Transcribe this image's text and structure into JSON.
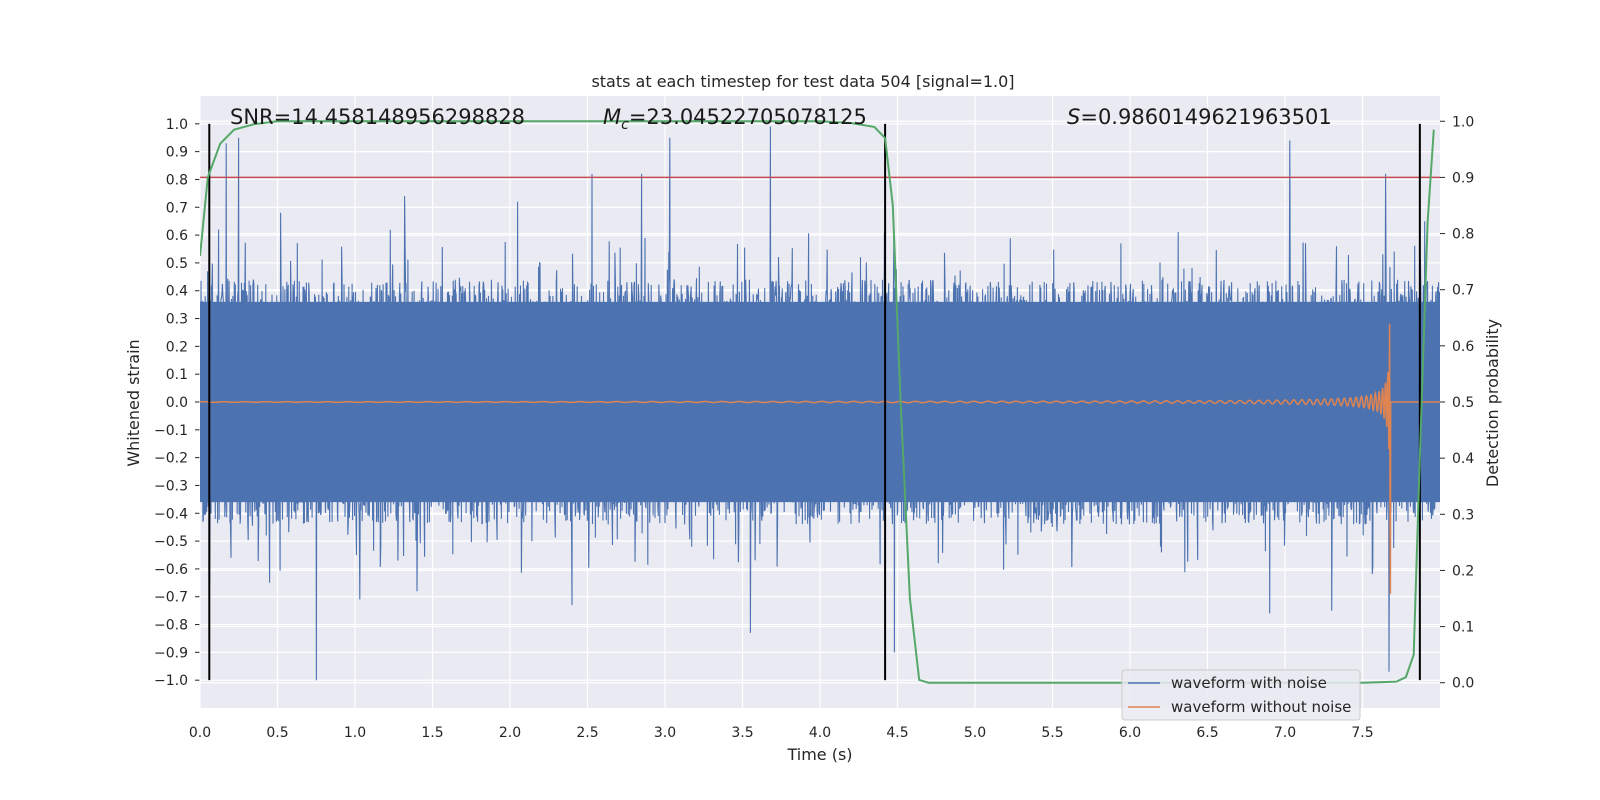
{
  "chart_data": {
    "type": "line",
    "title": "stats at each timestep for test data 504 [signal=1.0]",
    "xlabel": "Time (s)",
    "ylabel": "Whitened strain",
    "y2label": "Detection probability",
    "xlim": [
      0.0,
      8.0
    ],
    "ylim": [
      -1.1,
      1.1
    ],
    "y2lim": [
      -0.045,
      1.045
    ],
    "xticks": [
      "0.0",
      "0.5",
      "1.0",
      "1.5",
      "2.0",
      "2.5",
      "3.0",
      "3.5",
      "4.0",
      "4.5",
      "5.0",
      "5.5",
      "6.0",
      "6.5",
      "7.0",
      "7.5"
    ],
    "yticks": [
      "1.0",
      "0.9",
      "0.8",
      "0.7",
      "0.6",
      "0.5",
      "0.4",
      "0.3",
      "0.2",
      "0.1",
      "0.0",
      "−0.1",
      "−0.2",
      "−0.3",
      "−0.4",
      "−0.5",
      "−0.6",
      "−0.7",
      "−0.8",
      "−0.9",
      "−1.0"
    ],
    "y2ticks": [
      "1.0",
      "0.9",
      "0.8",
      "0.7",
      "0.6",
      "0.5",
      "0.4",
      "0.3",
      "0.2",
      "0.1",
      "0.0"
    ],
    "grid": true,
    "legend_position": "lower right",
    "annotations": {
      "snr": "SNR=14.458148956298828",
      "mc_symbol": "M",
      "mc_sub": "c",
      "mc_value": "=23.04522705078125",
      "s_symbol": "S",
      "s_value": "=0.9860149621963501"
    },
    "threshold": {
      "axis": "y2",
      "value": 0.9,
      "color": "#c44e52"
    },
    "vertical_lines": [
      0.06,
      4.42,
      7.87
    ],
    "series": [
      {
        "name": "waveform with noise",
        "axis": "y",
        "color": "#4c72b0",
        "envelope": [
          0.36,
          0.4
        ],
        "peaks": [
          [
            0.05,
            0.47
          ],
          [
            0.12,
            0.62
          ],
          [
            0.17,
            0.93
          ],
          [
            0.25,
            0.95
          ],
          [
            0.52,
            0.68
          ],
          [
            1.32,
            0.74
          ],
          [
            2.05,
            0.72
          ],
          [
            2.53,
            0.82
          ],
          [
            2.85,
            0.82
          ],
          [
            3.03,
            0.95
          ],
          [
            3.55,
            0.86
          ],
          [
            3.68,
            0.99
          ],
          [
            4.26,
            0.52
          ],
          [
            7.03,
            0.94
          ],
          [
            7.65,
            0.82
          ],
          [
            7.9,
            0.65
          ]
        ],
        "troughs": [
          [
            0.06,
            -0.66
          ],
          [
            0.2,
            -0.56
          ],
          [
            0.45,
            -0.65
          ],
          [
            0.75,
            -1.0
          ],
          [
            1.03,
            -0.71
          ],
          [
            1.4,
            -0.68
          ],
          [
            2.4,
            -0.73
          ],
          [
            3.55,
            -0.83
          ],
          [
            4.48,
            -0.9
          ],
          [
            6.9,
            -0.76
          ],
          [
            7.3,
            -0.75
          ],
          [
            7.67,
            -0.97
          ]
        ]
      },
      {
        "name": "waveform without noise",
        "axis": "y",
        "color": "#dd8452",
        "chirp_end": 7.68,
        "max_amplitude": 0.82
      },
      {
        "name": "detection probability",
        "axis": "y2",
        "color": "#55a868",
        "x": [
          0.0,
          0.05,
          0.13,
          0.22,
          0.35,
          0.5,
          1.0,
          2.0,
          3.0,
          4.0,
          4.2,
          4.35,
          4.42,
          4.47,
          4.52,
          4.58,
          4.64,
          4.7,
          5.0,
          6.0,
          7.0,
          7.5,
          7.72,
          7.78,
          7.83,
          7.87,
          7.92,
          7.96
        ],
        "y": [
          0.76,
          0.9,
          0.96,
          0.985,
          0.995,
          1.0,
          1.0,
          1.0,
          1.0,
          1.0,
          0.997,
          0.99,
          0.97,
          0.85,
          0.5,
          0.15,
          0.005,
          0.0,
          0.0,
          0.0,
          0.0,
          0.0,
          0.002,
          0.01,
          0.05,
          0.4,
          0.82,
          0.985
        ]
      }
    ],
    "legend": [
      "waveform with noise",
      "waveform without noise"
    ]
  }
}
